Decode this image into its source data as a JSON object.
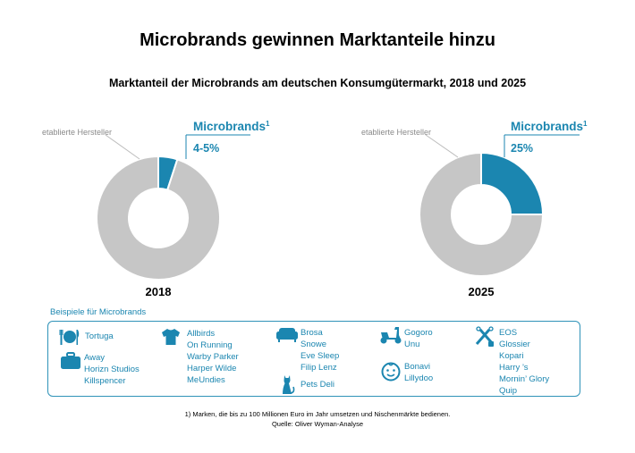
{
  "title": "Microbrands gewinnen Marktanteile hinzu",
  "subtitle": "Marktanteil der Microbrands am deutschen Konsumgütermarkt, 2018 und 2025",
  "chart_data": [
    {
      "type": "pie",
      "year": "2018",
      "slices": [
        {
          "label": "Microbrands",
          "superscript": "1",
          "value": 5,
          "value_label": "4-5%",
          "color": "#1b86b0"
        },
        {
          "label": "etablierte Hersteller",
          "value": 95,
          "color": "#c6c6c6"
        }
      ]
    },
    {
      "type": "pie",
      "year": "2025",
      "slices": [
        {
          "label": "Microbrands",
          "superscript": "1",
          "value": 25,
          "value_label": "25%",
          "color": "#1b86b0"
        },
        {
          "label": "etablierte Hersteller",
          "value": 75,
          "color": "#c6c6c6"
        }
      ]
    }
  ],
  "examples": {
    "title": "Beispiele für Microbrands",
    "groups": [
      {
        "icon": "cutlery-icon",
        "brands": [
          "Tortuga"
        ]
      },
      {
        "icon": "luggage-icon",
        "brands": [
          "Away",
          "Horizn Studios",
          "Killspencer"
        ]
      },
      {
        "icon": "tshirt-icon",
        "brands": [
          "Allbirds",
          "On Running",
          "Warby Parker",
          "Harper Wilde",
          "MeUndies"
        ]
      },
      {
        "icon": "sofa-icon",
        "brands": [
          "Brosa",
          "Snowe",
          "Eve Sleep",
          "Filip Lenz"
        ]
      },
      {
        "icon": "cat-icon",
        "brands": [
          "Pets Deli"
        ]
      },
      {
        "icon": "scooter-icon",
        "brands": [
          "Gogoro",
          "Unu"
        ]
      },
      {
        "icon": "baby-face-icon",
        "brands": [
          "Bonavi",
          "Lillydoo"
        ]
      },
      {
        "icon": "cosmetics-icon",
        "brands": [
          "EOS",
          "Glossier",
          "Kopari",
          "Harry ’s",
          "Mornin’ Glory",
          "Quip"
        ]
      }
    ]
  },
  "footnote": "1) Marken, die bis zu 100 Millionen Euro im Jahr umsetzen und Nischenmärkte bedienen.",
  "source": "Quelle: Oliver Wyman-Analyse",
  "colors": {
    "accent": "#1b86b0",
    "grey": "#c6c6c6",
    "label_grey": "#8a8a8a"
  }
}
